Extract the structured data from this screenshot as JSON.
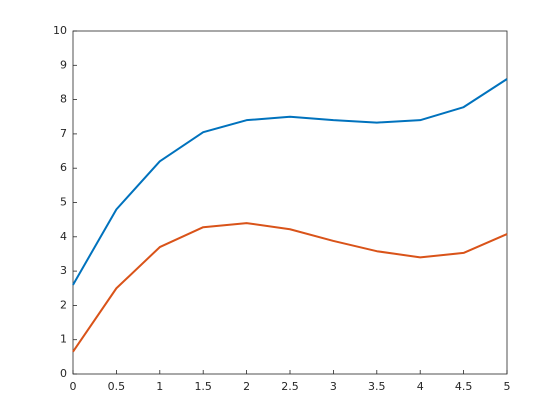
{
  "chart_data": {
    "type": "line",
    "x": [
      0,
      0.5,
      1,
      1.5,
      2,
      2.5,
      3,
      3.5,
      4,
      4.5,
      5
    ],
    "series": [
      {
        "color": "#0072bd",
        "values": [
          2.6,
          4.8,
          6.2,
          7.05,
          7.4,
          7.5,
          7.4,
          7.33,
          7.4,
          7.78,
          8.6
        ]
      },
      {
        "color": "#d95319",
        "values": [
          0.65,
          2.5,
          3.7,
          4.28,
          4.4,
          4.22,
          3.88,
          3.58,
          3.4,
          3.53,
          4.08
        ]
      }
    ],
    "xlim": [
      0,
      5
    ],
    "xticks": [
      0,
      0.5,
      1,
      1.5,
      2,
      2.5,
      3,
      3.5,
      4,
      4.5,
      5
    ],
    "ylim": [
      0,
      10
    ],
    "yticks": [
      0,
      1,
      2,
      3,
      4,
      5,
      6,
      7,
      8,
      9,
      10
    ],
    "grid": false
  }
}
